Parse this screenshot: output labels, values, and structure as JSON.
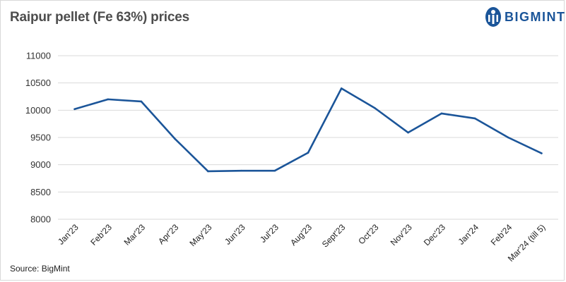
{
  "header": {
    "title": "Raipur pellet (Fe 63%) prices",
    "brand": "BIGMINT"
  },
  "footer": {
    "source": "Source: BigMint"
  },
  "colors": {
    "line": "#1b5599",
    "grid": "#d9d9d9",
    "title": "#4d4d4d"
  },
  "chart_data": {
    "type": "line",
    "title": "Raipur pellet (Fe 63%) prices",
    "xlabel": "",
    "ylabel": "",
    "ylim": [
      8000,
      11000
    ],
    "yticks": [
      8000,
      8500,
      9000,
      9500,
      10000,
      10500,
      11000
    ],
    "grid": true,
    "legend": "none",
    "categories": [
      "Jan'23",
      "Feb'23",
      "Mar'23",
      "Apr'23",
      "May'23",
      "Jun'23",
      "Jul'23",
      "Aug'23",
      "Sept'23",
      "Oct'23",
      "Nov'23",
      "Dec'23",
      "Jan'24",
      "Feb'24",
      "Mar'24 (till 5)"
    ],
    "series": [
      {
        "values": [
          10020,
          10200,
          10160,
          9480,
          8880,
          8890,
          8890,
          9220,
          10400,
          10040,
          9590,
          9940,
          9850,
          9500,
          9210
        ]
      }
    ]
  }
}
